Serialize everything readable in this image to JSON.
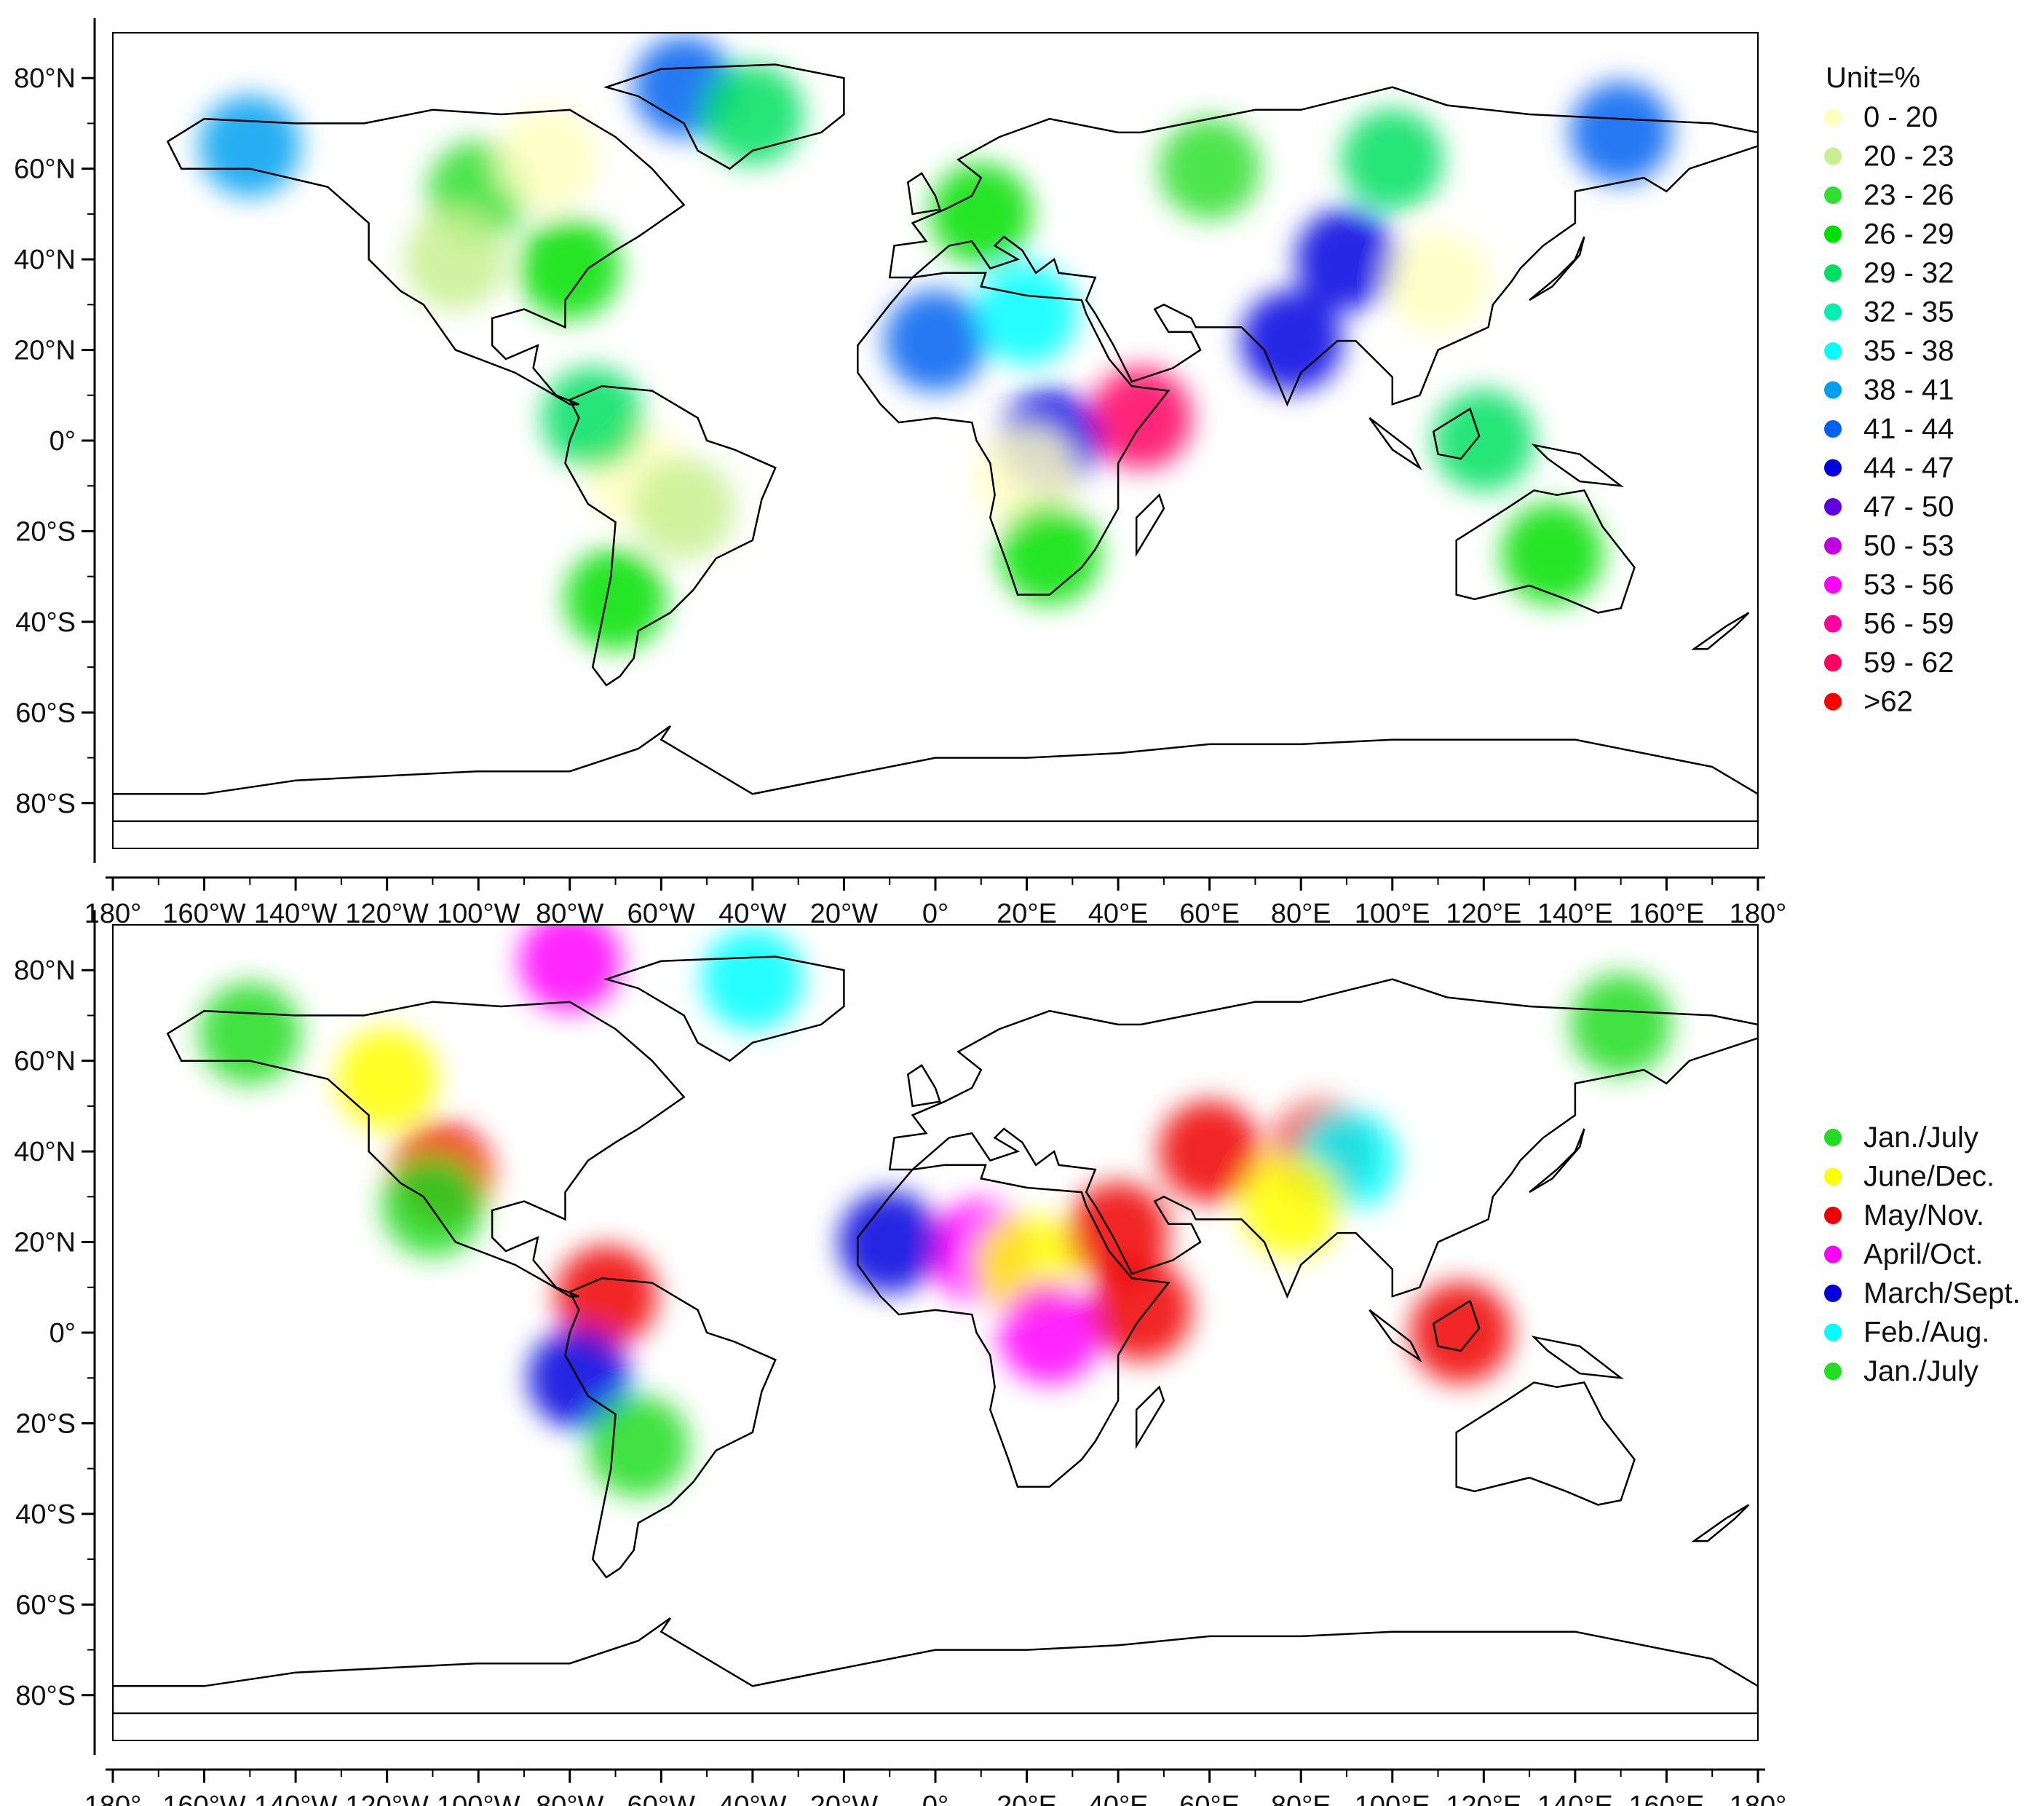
{
  "panels": [
    {
      "id": "top",
      "legend": {
        "title": "Unit=%",
        "items": [
          {
            "label": "0 - 20",
            "color": "#ffffc0"
          },
          {
            "label": "20 - 23",
            "color": "#c8f090"
          },
          {
            "label": "23 - 26",
            "color": "#30e030"
          },
          {
            "label": "26 - 29",
            "color": "#00e000"
          },
          {
            "label": "29 - 32",
            "color": "#00e060"
          },
          {
            "label": "32 - 35",
            "color": "#00f0b0"
          },
          {
            "label": "35 - 38",
            "color": "#00ffff"
          },
          {
            "label": "38 - 41",
            "color": "#00a0f0"
          },
          {
            "label": "41 - 44",
            "color": "#0060f0"
          },
          {
            "label": "44 - 47",
            "color": "#0000e0"
          },
          {
            "label": "47 - 50",
            "color": "#6000e0"
          },
          {
            "label": "50 - 53",
            "color": "#c000e0"
          },
          {
            "label": "53 - 56",
            "color": "#ff00ff"
          },
          {
            "label": "56 - 59",
            "color": "#ff00a0"
          },
          {
            "label": "59 - 62",
            "color": "#ff0060"
          },
          {
            "label": ">62",
            "color": "#ff0000"
          }
        ]
      },
      "blobs": [
        {
          "lon": -100,
          "lat": 55,
          "color": "#30e030"
        },
        {
          "lon": -85,
          "lat": 62,
          "color": "#ffffc0"
        },
        {
          "lon": -150,
          "lat": 65,
          "color": "#00a0f0"
        },
        {
          "lon": -105,
          "lat": 40,
          "color": "#c8f090"
        },
        {
          "lon": -80,
          "lat": 38,
          "color": "#00e000"
        },
        {
          "lon": -55,
          "lat": 78,
          "color": "#0060f0"
        },
        {
          "lon": -40,
          "lat": 72,
          "color": "#00e060"
        },
        {
          "lon": -65,
          "lat": -8,
          "color": "#ffffc0"
        },
        {
          "lon": -55,
          "lat": -15,
          "color": "#c8f090"
        },
        {
          "lon": -70,
          "lat": -35,
          "color": "#00e000"
        },
        {
          "lon": -75,
          "lat": 5,
          "color": "#00e060"
        },
        {
          "lon": 10,
          "lat": 50,
          "color": "#00e000"
        },
        {
          "lon": 60,
          "lat": 60,
          "color": "#30e030"
        },
        {
          "lon": 100,
          "lat": 62,
          "color": "#00e060"
        },
        {
          "lon": 150,
          "lat": 68,
          "color": "#0060f0"
        },
        {
          "lon": 90,
          "lat": 40,
          "color": "#0000e0"
        },
        {
          "lon": 110,
          "lat": 35,
          "color": "#ffffc0"
        },
        {
          "lon": 78,
          "lat": 22,
          "color": "#0000e0"
        },
        {
          "lon": 0,
          "lat": 22,
          "color": "#0060f0"
        },
        {
          "lon": 20,
          "lat": 28,
          "color": "#00ffff"
        },
        {
          "lon": 45,
          "lat": 5,
          "color": "#ff0060"
        },
        {
          "lon": 25,
          "lat": 0,
          "color": "#0000e0"
        },
        {
          "lon": 20,
          "lat": -8,
          "color": "#ffffc0"
        },
        {
          "lon": 25,
          "lat": -25,
          "color": "#00e000"
        },
        {
          "lon": 135,
          "lat": -25,
          "color": "#00e000"
        },
        {
          "lon": 120,
          "lat": 0,
          "color": "#00e060"
        }
      ]
    },
    {
      "id": "bottom",
      "legend": {
        "title": "",
        "items": [
          {
            "label": "Jan./July",
            "color": "#22dd22"
          },
          {
            "label": "June/Dec.",
            "color": "#ffff00"
          },
          {
            "label": "May/Nov.",
            "color": "#ee0000"
          },
          {
            "label": "April/Oct.",
            "color": "#ff00ff"
          },
          {
            "label": "March/Sept.",
            "color": "#0000dd"
          },
          {
            "label": "Feb./Aug.",
            "color": "#00ffff"
          },
          {
            "label": "Jan./July",
            "color": "#22dd22"
          }
        ]
      },
      "blobs": [
        {
          "lon": -150,
          "lat": 66,
          "color": "#22dd22"
        },
        {
          "lon": -120,
          "lat": 56,
          "color": "#ffff00"
        },
        {
          "lon": -108,
          "lat": 35,
          "color": "#ee0000"
        },
        {
          "lon": -110,
          "lat": 28,
          "color": "#22dd22"
        },
        {
          "lon": -72,
          "lat": 8,
          "color": "#ee0000"
        },
        {
          "lon": -78,
          "lat": -10,
          "color": "#0000dd"
        },
        {
          "lon": -65,
          "lat": -25,
          "color": "#22dd22"
        },
        {
          "lon": -40,
          "lat": 78,
          "color": "#00ffff"
        },
        {
          "lon": -80,
          "lat": 82,
          "color": "#ff00ff"
        },
        {
          "lon": 10,
          "lat": 18,
          "color": "#ff00ff"
        },
        {
          "lon": -10,
          "lat": 20,
          "color": "#0000dd"
        },
        {
          "lon": 20,
          "lat": 15,
          "color": "#ffff00"
        },
        {
          "lon": 40,
          "lat": 22,
          "color": "#ee0000"
        },
        {
          "lon": 25,
          "lat": 0,
          "color": "#ff00ff"
        },
        {
          "lon": 45,
          "lat": 5,
          "color": "#ee0000"
        },
        {
          "lon": 60,
          "lat": 40,
          "color": "#ee0000"
        },
        {
          "lon": 85,
          "lat": 40,
          "color": "#ee0000"
        },
        {
          "lon": 90,
          "lat": 38,
          "color": "#00ffff"
        },
        {
          "lon": 78,
          "lat": 28,
          "color": "#ffff00"
        },
        {
          "lon": 150,
          "lat": 68,
          "color": "#22dd22"
        },
        {
          "lon": 115,
          "lat": 0,
          "color": "#ee0000"
        }
      ]
    }
  ],
  "axes": {
    "x_ticks": [
      "180°",
      "160°W",
      "140°W",
      "120°W",
      "100°W",
      "80°W",
      "60°W",
      "40°W",
      "20°W",
      "0°",
      "20°E",
      "40°E",
      "60°E",
      "80°E",
      "100°E",
      "120°E",
      "140°E",
      "160°E",
      "180°"
    ],
    "y_ticks": [
      "80°N",
      "60°N",
      "40°N",
      "20°N",
      "0°",
      "20°S",
      "40°S",
      "60°S",
      "80°S"
    ],
    "y_values": [
      80,
      60,
      40,
      20,
      0,
      -20,
      -40,
      -60,
      -80
    ]
  },
  "colors": {
    "coastline": "#000000",
    "frame": "#000000"
  }
}
